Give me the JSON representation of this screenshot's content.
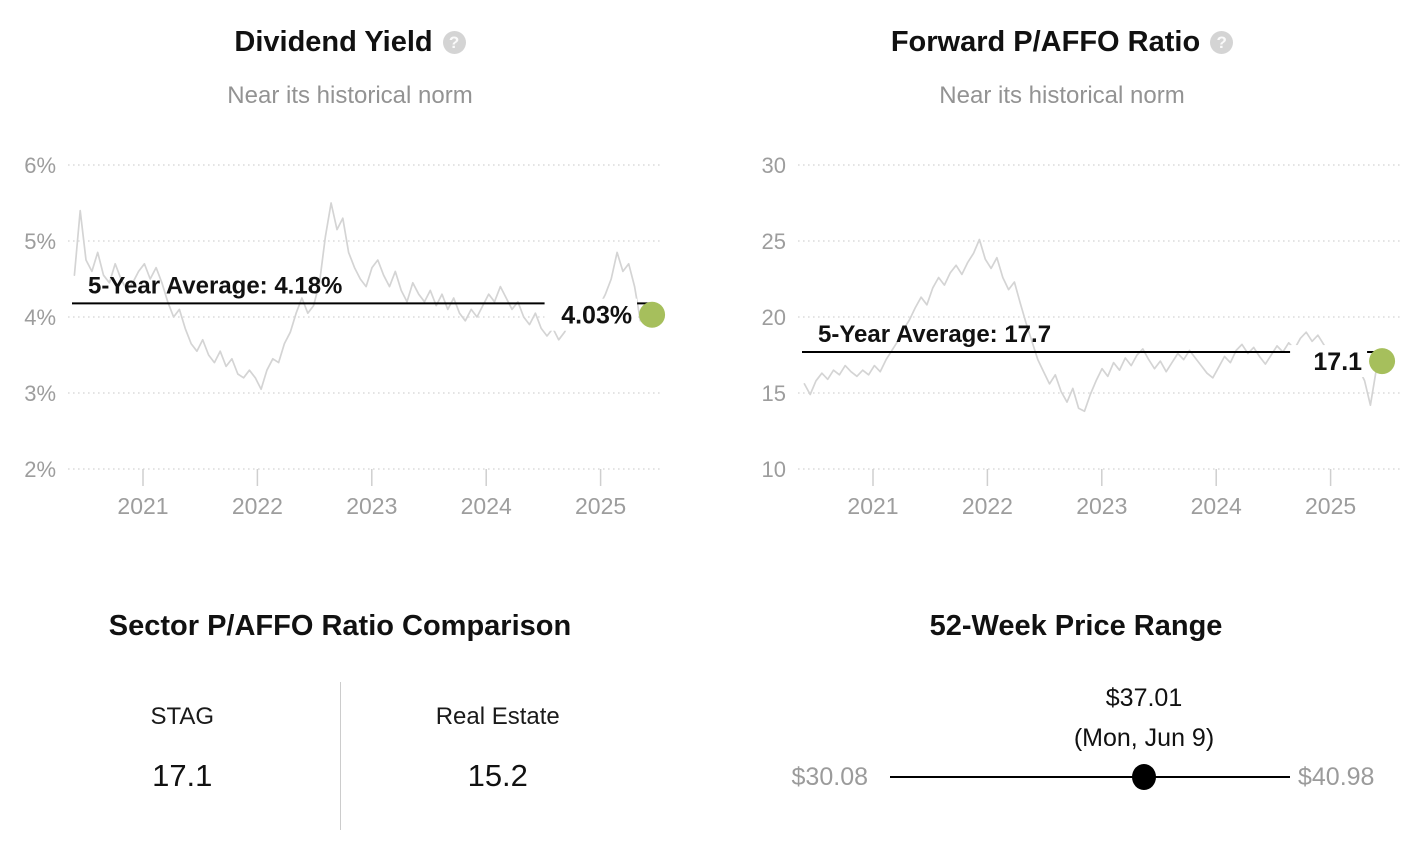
{
  "palette": {
    "accent_green": "#a6bf5c",
    "series_gray": "#d4d4d4",
    "grid_gray": "#dcdcdc",
    "tick_gray": "#cfcfcf",
    "axis_text": "#9d9d9d",
    "muted_text": "#939393",
    "ink": "#111111"
  },
  "chart_data": [
    {
      "type": "line",
      "title": "Dividend Yield",
      "subtitle": "Near its historical norm",
      "help_icon": "?",
      "xlabel": "",
      "ylabel": "",
      "grid": "horizontal-dotted",
      "legend_position": "none",
      "ylim": [
        2,
        6
      ],
      "y_tick_values": [
        6,
        5,
        4,
        3,
        2
      ],
      "y_tick_labels": [
        "6%",
        "5%",
        "4%",
        "3%",
        "2%"
      ],
      "x_tick_values": [
        2021,
        2022,
        2023,
        2024,
        2025
      ],
      "x_tick_labels": [
        "2021",
        "2022",
        "2023",
        "2024",
        "2025"
      ],
      "x_range": [
        2020.4,
        2025.45
      ],
      "x_sampling": "uniform",
      "average_line": {
        "label": "5-Year Average: 4.18%",
        "value": 4.18
      },
      "current": {
        "label": "4.03%",
        "value": 4.03
      },
      "line_color": "#d4d4d4",
      "dot_color": "#a6bf5c",
      "series": [
        {
          "name": "Dividend Yield (%)",
          "values": [
            4.55,
            5.4,
            4.75,
            4.6,
            4.85,
            4.55,
            4.45,
            4.7,
            4.5,
            4.35,
            4.45,
            4.6,
            4.7,
            4.5,
            4.65,
            4.45,
            4.2,
            4.0,
            4.1,
            3.85,
            3.65,
            3.55,
            3.7,
            3.5,
            3.4,
            3.55,
            3.35,
            3.45,
            3.25,
            3.2,
            3.3,
            3.2,
            3.05,
            3.3,
            3.45,
            3.4,
            3.65,
            3.8,
            4.05,
            4.25,
            4.05,
            4.15,
            4.45,
            5.05,
            5.5,
            5.15,
            5.3,
            4.85,
            4.65,
            4.5,
            4.4,
            4.65,
            4.75,
            4.55,
            4.4,
            4.6,
            4.35,
            4.2,
            4.45,
            4.3,
            4.2,
            4.35,
            4.15,
            4.3,
            4.1,
            4.25,
            4.05,
            3.95,
            4.1,
            4.0,
            4.15,
            4.3,
            4.2,
            4.4,
            4.25,
            4.1,
            4.2,
            4.0,
            3.9,
            4.05,
            3.85,
            3.75,
            3.85,
            3.7,
            3.8,
            3.95,
            3.85,
            4.0,
            3.9,
            4.05,
            4.15,
            4.3,
            4.5,
            4.85,
            4.6,
            4.7,
            4.4,
            3.95,
            4.1,
            4.03
          ]
        }
      ]
    },
    {
      "type": "line",
      "title": "Forward P/AFFO Ratio",
      "subtitle": "Near its historical norm",
      "help_icon": "?",
      "xlabel": "",
      "ylabel": "",
      "grid": "horizontal-dotted",
      "legend_position": "none",
      "ylim": [
        10,
        30
      ],
      "y_tick_values": [
        30,
        25,
        20,
        15,
        10
      ],
      "y_tick_labels": [
        "30",
        "25",
        "20",
        "15",
        "10"
      ],
      "x_tick_values": [
        2021,
        2022,
        2023,
        2024,
        2025
      ],
      "x_tick_labels": [
        "2021",
        "2022",
        "2023",
        "2024",
        "2025"
      ],
      "x_range": [
        2020.4,
        2025.45
      ],
      "x_sampling": "uniform",
      "average_line": {
        "label": "5-Year Average: 17.7",
        "value": 17.7
      },
      "current": {
        "label": "17.1",
        "value": 17.1
      },
      "line_color": "#d4d4d4",
      "dot_color": "#a6bf5c",
      "series": [
        {
          "name": "Forward P/AFFO Ratio",
          "values": [
            15.6,
            14.9,
            15.8,
            16.3,
            15.9,
            16.5,
            16.2,
            16.8,
            16.4,
            16.1,
            16.5,
            16.2,
            16.8,
            16.4,
            17.2,
            17.8,
            18.4,
            19.2,
            19.8,
            20.6,
            21.3,
            20.8,
            21.9,
            22.6,
            22.1,
            22.9,
            23.4,
            22.8,
            23.6,
            24.2,
            25.1,
            23.8,
            23.2,
            23.9,
            22.6,
            21.8,
            22.3,
            20.9,
            19.6,
            18.4,
            17.2,
            16.4,
            15.6,
            16.2,
            15.1,
            14.4,
            15.3,
            14.0,
            13.8,
            14.9,
            15.8,
            16.6,
            16.1,
            17.0,
            16.5,
            17.3,
            16.8,
            17.5,
            17.9,
            17.2,
            16.6,
            17.1,
            16.4,
            17.0,
            17.6,
            17.2,
            17.8,
            17.3,
            16.8,
            16.3,
            16.0,
            16.7,
            17.4,
            17.0,
            17.8,
            18.2,
            17.6,
            18.0,
            17.4,
            16.9,
            17.5,
            18.1,
            17.7,
            18.3,
            17.9,
            18.6,
            19.0,
            18.4,
            18.8,
            18.2,
            17.5,
            17.0,
            17.4,
            16.8,
            16.2,
            16.6,
            15.8,
            14.2,
            16.5,
            17.1
          ]
        }
      ]
    }
  ],
  "sector_comparison": {
    "title": "Sector P/AFFO Ratio Comparison",
    "items": [
      {
        "name": "STAG",
        "value": "17.1"
      },
      {
        "name": "Real Estate",
        "value": "15.2"
      }
    ]
  },
  "price_range": {
    "title": "52-Week Price Range",
    "low": 30.08,
    "high": 40.98,
    "current": 37.01,
    "low_label": "$30.08",
    "high_label": "$40.98",
    "current_label": "$37.01",
    "current_date": "(Mon, Jun 9)"
  }
}
